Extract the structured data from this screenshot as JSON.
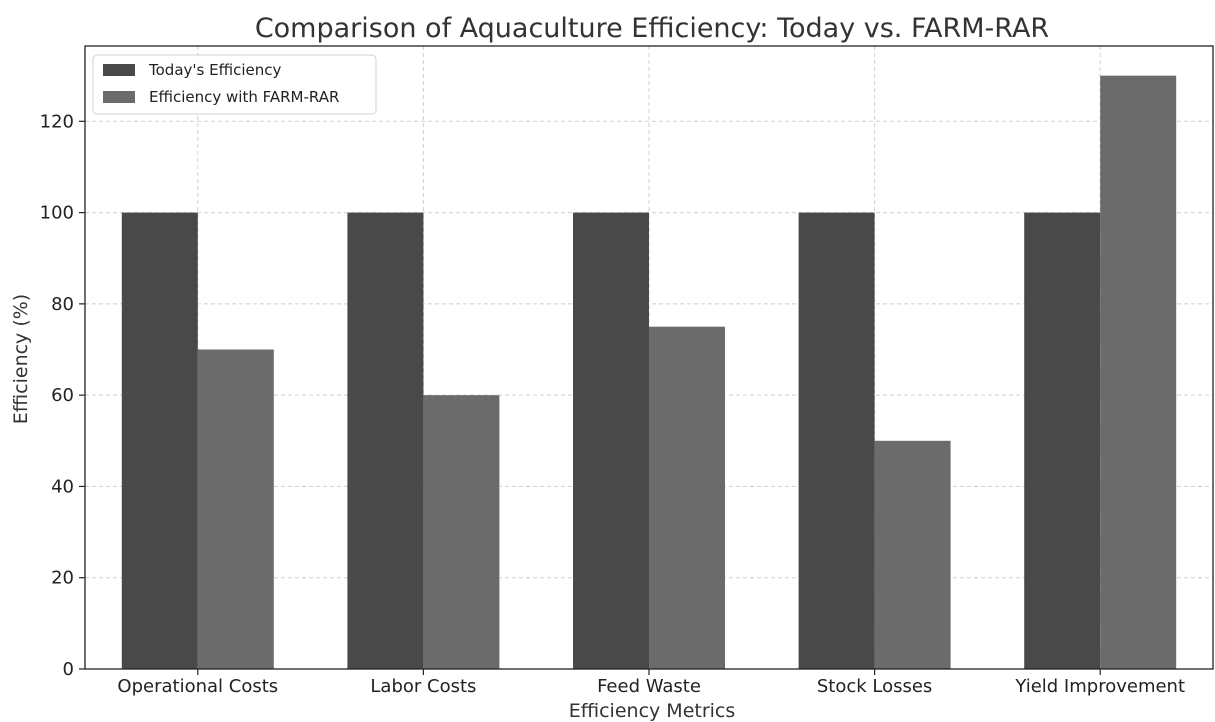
{
  "chart_data": {
    "type": "bar",
    "title": "Comparison of Aquaculture Efficiency: Today vs. FARM-RAR",
    "xlabel": "Efficiency Metrics",
    "ylabel": "Efficiency (%)",
    "categories": [
      "Operational Costs",
      "Labor Costs",
      "Feed Waste",
      "Stock Losses",
      "Yield Improvement"
    ],
    "series": [
      {
        "name": "Today's Efficiency",
        "values": [
          100,
          100,
          100,
          100,
          100
        ],
        "color": "#494949"
      },
      {
        "name": "Efficiency with FARM-RAR",
        "values": [
          70,
          60,
          75,
          50,
          130
        ],
        "color": "#6b6b6b"
      }
    ],
    "ylim": [
      0,
      136.5
    ],
    "yticks": [
      0,
      20,
      40,
      60,
      80,
      100,
      120
    ],
    "grid": true,
    "legend": "top-left"
  }
}
